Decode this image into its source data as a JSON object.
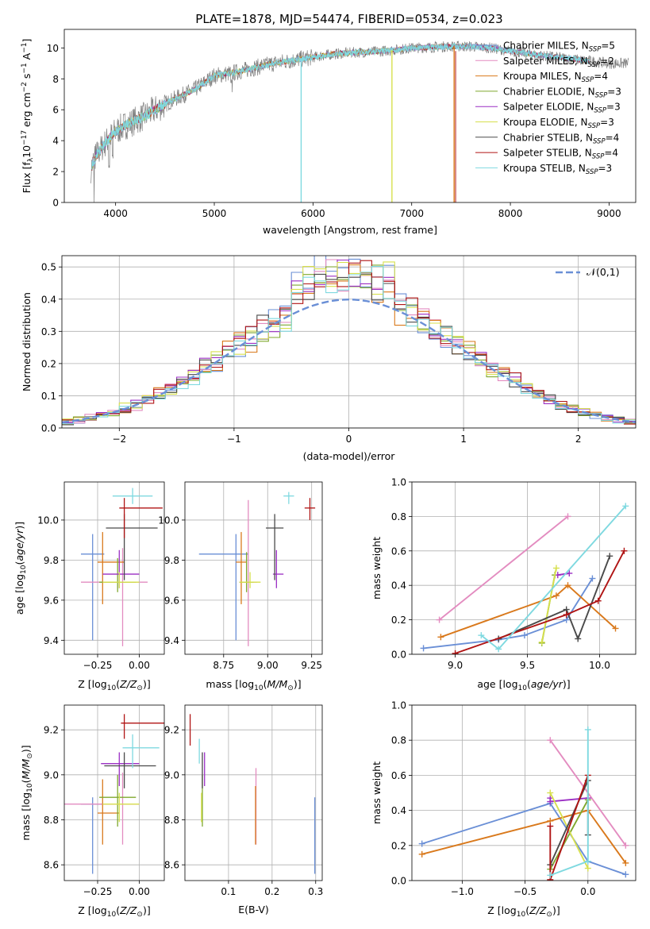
{
  "figure_title": "PLATE=1878, MJD=54474, FIBERID=0534, z=0.023",
  "series_styles": [
    {
      "name": "Chabrier MILES",
      "nssp": "5",
      "color": "#6a8fd6"
    },
    {
      "name": "Salpeter MILES",
      "nssp": "2",
      "color": "#e38cc0"
    },
    {
      "name": "Kroupa MILES",
      "nssp": "4",
      "color": "#d9791c"
    },
    {
      "name": "Chabrier ELODIE",
      "nssp": "3",
      "color": "#7fa82e"
    },
    {
      "name": "Salpeter ELODIE",
      "nssp": "3",
      "color": "#9b2fc4"
    },
    {
      "name": "Kroupa ELODIE",
      "nssp": "3",
      "color": "#d7e04e"
    },
    {
      "name": "Chabrier STELIB",
      "nssp": "4",
      "color": "#4a4a4a"
    },
    {
      "name": "Salpeter STELIB",
      "nssp": "4",
      "color": "#b01414"
    },
    {
      "name": "Kroupa STELIB",
      "nssp": "3",
      "color": "#7fd9e0"
    }
  ],
  "chart_data": [
    {
      "id": "spectrum",
      "type": "line",
      "xlabel": "wavelength [Angstrom, rest frame]",
      "ylabel": "Flux [f_λ 10^-17 erg cm^-2 s^-1 A^-1]",
      "ylabel_parts": {
        "a": "Flux [f",
        "b": "λ",
        "c": "10",
        "d": "−17",
        "e": " erg cm",
        "f": "−2",
        "g": " s",
        "h": "−1",
        "i": " A",
        "j": "−1",
        "k": "]"
      },
      "xlim": [
        3480,
        9270
      ],
      "ylim": [
        0,
        11.2
      ],
      "xticks": [
        4000,
        5000,
        6000,
        7000,
        8000,
        9000
      ],
      "yticks": [
        0,
        2,
        4,
        6,
        8,
        10
      ],
      "legend": "upper-right",
      "continuum": {
        "x": [
          3750,
          3800,
          3900,
          4000,
          4100,
          4200,
          4300,
          4400,
          4600,
          4800,
          5000,
          5200,
          5400,
          5600,
          5800,
          6000,
          6200,
          6400,
          6600,
          6800,
          7000,
          7200,
          7400,
          7600,
          7800,
          8000,
          8200,
          8400,
          8600,
          8800,
          9000
        ],
        "y": [
          2.2,
          3.0,
          3.9,
          4.6,
          5.0,
          5.3,
          5.6,
          6.0,
          6.7,
          7.3,
          8.2,
          8.4,
          8.7,
          9.0,
          9.2,
          9.4,
          9.6,
          9.7,
          9.75,
          9.85,
          10.0,
          10.05,
          10.1,
          10.1,
          10.0,
          9.8,
          9.6,
          9.45,
          9.3,
          9.15,
          9.0
        ]
      },
      "observed_range": [
        3750,
        9200
      ],
      "drops": [
        {
          "x": 5880,
          "color": "#7fd9e0"
        },
        {
          "x": 6800,
          "color": "#d7e04e"
        },
        {
          "x": 7430,
          "color": "#d9791c"
        }
      ]
    },
    {
      "id": "residuals",
      "type": "histogram",
      "xlabel": "(data-model)/error",
      "ylabel": "Normed distribution",
      "xlim": [
        -2.5,
        2.5
      ],
      "ylim": [
        0,
        0.535
      ],
      "xticks": [
        -2,
        -1,
        0,
        1,
        2
      ],
      "yticks": [
        0.0,
        0.1,
        0.2,
        0.3,
        0.4,
        0.5
      ],
      "bin_width": 0.1,
      "reference_curve": {
        "label": "𝒩(0,1)",
        "mean": 0,
        "sigma": 1,
        "color": "#6a8fd6"
      }
    },
    {
      "id": "age-vs-z",
      "type": "errorbar",
      "xlabel": "Z [log10(Z/Z⊙)]",
      "ylabel": "age  [log10(age/yr)]",
      "xlim": [
        -0.45,
        0.15
      ],
      "ylim": [
        9.33,
        10.19
      ],
      "xticks": [
        -0.25,
        0.0
      ],
      "yticks": [
        9.4,
        9.6,
        9.8,
        10.0
      ],
      "points": [
        {
          "s": 0,
          "x": -0.28,
          "xe": [
            0.07,
            0.07
          ],
          "y": 9.83,
          "ye": [
            0.43,
            0.1
          ]
        },
        {
          "s": 1,
          "x": -0.1,
          "xe": [
            0.25,
            0.15
          ],
          "y": 9.69,
          "ye": [
            0.32,
            0.17
          ]
        },
        {
          "s": 2,
          "x": -0.22,
          "xe": [
            0.03,
            0.13
          ],
          "y": 9.79,
          "ye": [
            0.21,
            0.15
          ]
        },
        {
          "s": 3,
          "x": -0.13,
          "xe": [
            0.11,
            0.11
          ],
          "y": 9.69,
          "ye": [
            0.05,
            0.12
          ]
        },
        {
          "s": 4,
          "x": -0.12,
          "xe": [
            0.1,
            0.12
          ],
          "y": 9.73,
          "ye": [
            0.07,
            0.12
          ]
        },
        {
          "s": 5,
          "x": -0.12,
          "xe": [
            0.1,
            0.12
          ],
          "y": 9.69,
          "ye": [
            0.03,
            0.05
          ]
        },
        {
          "s": 6,
          "x": -0.09,
          "xe": [
            0.11,
            0.2
          ],
          "y": 9.96,
          "ye": [
            0.26,
            0.07
          ]
        },
        {
          "s": 7,
          "x": -0.09,
          "xe": [
            0.03,
            0.23
          ],
          "y": 10.06,
          "ye": [
            0.15,
            0.05
          ]
        },
        {
          "s": 8,
          "x": -0.04,
          "xe": [
            0.12,
            0.12
          ],
          "y": 10.12,
          "ye": [
            0.04,
            0.04
          ]
        }
      ]
    },
    {
      "id": "age-vs-mass",
      "type": "errorbar",
      "xlabel": "mass [log10(M/M⊙)]",
      "ylabel": "",
      "xlim": [
        8.53,
        9.31
      ],
      "ylim": [
        9.33,
        10.19
      ],
      "xticks": [
        8.75,
        9.0,
        9.25
      ],
      "yticks": [
        9.4,
        9.6,
        9.8,
        10.0
      ],
      "points": [
        {
          "s": 0,
          "x": 8.82,
          "xe": [
            0.21,
            0.07
          ],
          "y": 9.83,
          "ye": [
            0.43,
            0.1
          ]
        },
        {
          "s": 1,
          "x": 8.89,
          "xe": [
            0.05,
            0.05
          ],
          "y": 9.69,
          "ye": [
            0.32,
            0.41
          ]
        },
        {
          "s": 2,
          "x": 8.85,
          "xe": [
            0.03,
            0.03
          ],
          "y": 9.79,
          "ye": [
            0.21,
            0.15
          ]
        },
        {
          "s": 3,
          "x": 8.88,
          "xe": [
            0.04,
            0.04
          ],
          "y": 9.69,
          "ye": [
            0.05,
            0.15
          ]
        },
        {
          "s": 4,
          "x": 9.05,
          "xe": [
            0.02,
            0.04
          ],
          "y": 9.73,
          "ye": [
            0.07,
            0.12
          ]
        },
        {
          "s": 5,
          "x": 8.9,
          "xe": [
            0.06,
            0.06
          ],
          "y": 9.69,
          "ye": [
            0.03,
            0.05
          ]
        },
        {
          "s": 6,
          "x": 9.04,
          "xe": [
            0.05,
            0.05
          ],
          "y": 9.96,
          "ye": [
            0.26,
            0.07
          ]
        },
        {
          "s": 7,
          "x": 9.24,
          "xe": [
            0.03,
            0.03
          ],
          "y": 10.06,
          "ye": [
            0.06,
            0.05
          ]
        },
        {
          "s": 8,
          "x": 9.12,
          "xe": [
            0.03,
            0.03
          ],
          "y": 10.12,
          "ye": [
            0.04,
            0.02
          ]
        }
      ]
    },
    {
      "id": "weight-vs-age",
      "type": "line",
      "xlabel": "age  [log10(age/yr)]",
      "ylabel": "mass weight",
      "xlim": [
        8.7,
        10.25
      ],
      "ylim": [
        0,
        1
      ],
      "xticks": [
        9.0,
        9.5,
        10.0
      ],
      "yticks": [
        0.0,
        0.2,
        0.4,
        0.6,
        0.8,
        1.0
      ],
      "series": [
        {
          "s": 0,
          "x": [
            8.78,
            9.3,
            9.48,
            9.77,
            9.95
          ],
          "y": [
            0.035,
            0.085,
            0.11,
            0.2,
            0.44
          ]
        },
        {
          "s": 1,
          "x": [
            8.89,
            9.78
          ],
          "y": [
            0.2,
            0.8
          ]
        },
        {
          "s": 2,
          "x": [
            8.9,
            9.7,
            9.78,
            10.11
          ],
          "y": [
            0.1,
            0.34,
            0.4,
            0.15
          ]
        },
        {
          "s": 3,
          "x": [
            9.6,
            9.69
          ],
          "y": [
            0.065,
            0.46
          ]
        },
        {
          "s": 4,
          "x": [
            9.71,
            9.79
          ],
          "y": [
            0.46,
            0.47
          ]
        },
        {
          "s": 5,
          "x": [
            9.6,
            9.7
          ],
          "y": [
            0.07,
            0.5
          ]
        },
        {
          "s": 6,
          "x": [
            9.3,
            9.77,
            9.85,
            10.07
          ],
          "y": [
            0.09,
            0.26,
            0.09,
            0.57
          ]
        },
        {
          "s": 7,
          "x": [
            9.0,
            9.77,
            9.99,
            10.17
          ],
          "y": [
            0.005,
            0.23,
            0.31,
            0.6
          ]
        },
        {
          "s": 8,
          "x": [
            9.18,
            9.3,
            10.18
          ],
          "y": [
            0.11,
            0.03,
            0.86
          ]
        }
      ]
    },
    {
      "id": "mass-vs-z",
      "type": "errorbar",
      "xlabel": "Z [log10(Z/Z⊙)]",
      "ylabel": "mass [log10(M/M⊙)]",
      "xlim": [
        -0.45,
        0.15
      ],
      "ylim": [
        8.53,
        9.31
      ],
      "xticks": [
        -0.25,
        0.0
      ],
      "yticks": [
        8.6,
        8.8,
        9.0,
        9.2
      ],
      "points": [
        {
          "s": 0,
          "x": -0.28,
          "xe": [
            0.07,
            0.07
          ],
          "y": 8.87,
          "ye": [
            0.31,
            0.03
          ]
        },
        {
          "s": 1,
          "x": -0.1,
          "xe": [
            0.35,
            0.1
          ],
          "y": 8.87,
          "ye": [
            0.18,
            0.14
          ]
        },
        {
          "s": 2,
          "x": -0.22,
          "xe": [
            0.03,
            0.1
          ],
          "y": 8.83,
          "ye": [
            0.14,
            0.15
          ]
        },
        {
          "s": 3,
          "x": -0.13,
          "xe": [
            0.11,
            0.11
          ],
          "y": 8.9,
          "ye": [
            0.13,
            0.1
          ]
        },
        {
          "s": 4,
          "x": -0.12,
          "xe": [
            0.11,
            0.12
          ],
          "y": 9.05,
          "ye": [
            0.1,
            0.05
          ]
        },
        {
          "s": 5,
          "x": -0.12,
          "xe": [
            0.1,
            0.12
          ],
          "y": 8.87,
          "ye": [
            0.08,
            0.05
          ]
        },
        {
          "s": 6,
          "x": -0.09,
          "xe": [
            0.12,
            0.19
          ],
          "y": 9.04,
          "ye": [
            0.1,
            0.06
          ]
        },
        {
          "s": 7,
          "x": -0.09,
          "xe": [
            0.02,
            0.24
          ],
          "y": 9.23,
          "ye": [
            0.07,
            0.04
          ]
        },
        {
          "s": 8,
          "x": -0.04,
          "xe": [
            0.06,
            0.16
          ],
          "y": 9.12,
          "ye": [
            0.09,
            0.06
          ]
        }
      ]
    },
    {
      "id": "mass-vs-ebv",
      "type": "errorbar",
      "xlabel": "E(B-V)",
      "ylabel": "",
      "xlim": [
        0.0,
        0.315
      ],
      "ylim": [
        8.53,
        9.31
      ],
      "xticks": [
        0.1,
        0.2,
        0.3
      ],
      "yticks": [
        8.6,
        8.8,
        9.0,
        9.2
      ],
      "points": [
        {
          "s": 0,
          "x": 0.298,
          "xe": [
            0,
            0
          ],
          "y": 8.87,
          "ye": [
            0.31,
            0.03
          ]
        },
        {
          "s": 1,
          "x": 0.163,
          "xe": [
            0,
            0
          ],
          "y": 8.87,
          "ye": [
            0.18,
            0.16
          ]
        },
        {
          "s": 2,
          "x": 0.162,
          "xe": [
            0,
            0
          ],
          "y": 8.83,
          "ye": [
            0.14,
            0.12
          ]
        },
        {
          "s": 3,
          "x": 0.04,
          "xe": [
            0,
            0
          ],
          "y": 8.9,
          "ye": [
            0.13,
            0.1
          ]
        },
        {
          "s": 4,
          "x": 0.045,
          "xe": [
            0,
            0
          ],
          "y": 9.05,
          "ye": [
            0.1,
            0.05
          ]
        },
        {
          "s": 5,
          "x": 0.038,
          "xe": [
            0,
            0
          ],
          "y": 8.87,
          "ye": [
            0.08,
            0.05
          ]
        },
        {
          "s": 6,
          "x": 0.04,
          "xe": [
            0,
            0
          ],
          "y": 9.04,
          "ye": [
            0.1,
            0.06
          ]
        },
        {
          "s": 7,
          "x": 0.012,
          "xe": [
            0,
            0
          ],
          "y": 9.2,
          "ye": [
            0.07,
            0.07
          ]
        },
        {
          "s": 8,
          "x": 0.033,
          "xe": [
            0,
            0
          ],
          "y": 9.1,
          "ye": [
            0.05,
            0.06
          ]
        }
      ]
    },
    {
      "id": "weight-vs-z",
      "type": "line",
      "xlabel": "Z [log10(Z/Z⊙)]",
      "ylabel": "mass weight",
      "xlim": [
        -1.4,
        0.38
      ],
      "ylim": [
        0,
        1
      ],
      "xticks": [
        -1.0,
        -0.5,
        0.0
      ],
      "yticks": [
        0.0,
        0.2,
        0.4,
        0.6,
        0.8,
        1.0
      ],
      "series": [
        {
          "s": 0,
          "x": [
            -1.32,
            -0.3,
            0.0,
            0.3
          ],
          "y": [
            0.21,
            0.44,
            0.11,
            0.035
          ]
        },
        {
          "s": 1,
          "x": [
            -0.3,
            0.3
          ],
          "y": [
            0.8,
            0.2
          ]
        },
        {
          "s": 2,
          "x": [
            -1.32,
            -0.3,
            0.0,
            0.3
          ],
          "y": [
            0.15,
            0.34,
            0.4,
            0.1
          ]
        },
        {
          "s": 3,
          "x": [
            -0.3,
            0.0
          ],
          "y": [
            0.065,
            0.46
          ]
        },
        {
          "s": 4,
          "x": [
            -0.3,
            -0.3,
            0.0
          ],
          "y": [
            0.47,
            0.45,
            0.47
          ]
        },
        {
          "s": 5,
          "x": [
            -0.3,
            0.0
          ],
          "y": [
            0.5,
            0.07
          ]
        },
        {
          "s": 6,
          "x": [
            -0.3,
            0.0,
            0.0
          ],
          "y": [
            0.09,
            0.57,
            0.26
          ]
        },
        {
          "s": 7,
          "x": [
            -0.3,
            -0.3,
            0.0
          ],
          "y": [
            0.31,
            0.005,
            0.6
          ]
        },
        {
          "s": 8,
          "x": [
            -0.3,
            0.0,
            0.0
          ],
          "y": [
            0.03,
            0.11,
            0.86
          ]
        }
      ]
    }
  ]
}
